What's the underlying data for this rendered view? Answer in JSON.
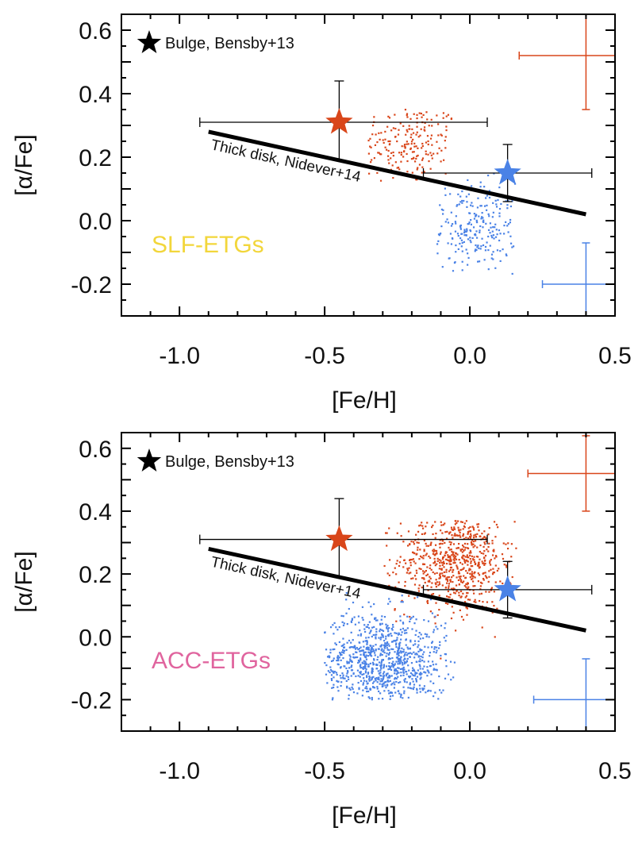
{
  "chart_data": [
    {
      "type": "scatter",
      "panel_label": "SLF-ETGs",
      "panel_label_color": "#f2d63b",
      "xlabel": "[Fe/H]",
      "ylabel": "[α/Fe]",
      "xlim": [
        -1.2,
        0.5
      ],
      "ylim": [
        -0.3,
        0.65
      ],
      "xticks": [
        -1.0,
        -0.5,
        0.0,
        0.5
      ],
      "xtick_labels": [
        "-1.0",
        "-0.5",
        "0.0",
        "0.5"
      ],
      "yticks": [
        -0.2,
        0.0,
        0.2,
        0.4,
        0.6
      ],
      "ytick_labels": [
        "-0.2",
        "0.0",
        "0.2",
        "0.4",
        "0.6"
      ],
      "legend": "Bulge, Bensby+13",
      "thick_disk": {
        "label": "Thick disk, Nidever+14",
        "x": [
          -0.9,
          0.4
        ],
        "y": [
          0.28,
          0.02
        ]
      },
      "series": [
        {
          "color": "#d9461a",
          "scatter": {
            "fe_center": -0.21,
            "fe_sd": 0.09,
            "a_center": 0.24,
            "a_sd": 0.065,
            "count": 200,
            "fe_range": [
              -0.35,
              -0.05
            ],
            "a_range": [
              0.05,
              0.38
            ]
          },
          "star": {
            "x": -0.45,
            "y": 0.31,
            "xerr": [
              0.48,
              0.51
            ],
            "yerr": [
              0.12,
              0.13
            ]
          }
        },
        {
          "color": "#4a82e6",
          "scatter": {
            "fe_center": 0.02,
            "fe_sd": 0.07,
            "a_center": -0.02,
            "a_sd": 0.07,
            "count": 240,
            "fe_range": [
              -0.12,
              0.16
            ],
            "a_range": [
              -0.18,
              0.15
            ]
          },
          "star": {
            "x": 0.13,
            "y": 0.15,
            "xerr": [
              0.29,
              0.29
            ],
            "yerr": [
              0.09,
              0.09
            ]
          }
        }
      ],
      "typical_errors": [
        {
          "color": "#d9461a",
          "x": 0.4,
          "y": 0.52,
          "xerr": 0.23,
          "yerr": 0.17
        },
        {
          "color": "#4a82e6",
          "x": 0.4,
          "y": -0.2,
          "xerr": 0.15,
          "yerr": 0.13
        }
      ]
    },
    {
      "type": "scatter",
      "panel_label": "ACC-ETGs",
      "panel_label_color": "#e0649e",
      "xlabel": "[Fe/H]",
      "ylabel": "[α/Fe]",
      "xlim": [
        -1.2,
        0.5
      ],
      "ylim": [
        -0.3,
        0.65
      ],
      "xticks": [
        -1.0,
        -0.5,
        0.0,
        0.5
      ],
      "xtick_labels": [
        "-1.0",
        "-0.5",
        "0.0",
        "0.5"
      ],
      "yticks": [
        -0.2,
        0.0,
        0.2,
        0.4,
        0.6
      ],
      "ytick_labels": [
        "-0.2",
        "0.0",
        "0.2",
        "0.4",
        "0.6"
      ],
      "legend": "Bulge, Bensby+13",
      "thick_disk": {
        "label": "Thick disk, Nidever+14",
        "x": [
          -0.9,
          0.4
        ],
        "y": [
          0.28,
          0.02
        ]
      },
      "series": [
        {
          "color": "#d9461a",
          "scatter": {
            "fe_center": -0.05,
            "fe_sd": 0.1,
            "a_center": 0.24,
            "a_sd": 0.08,
            "count": 700,
            "fe_range": [
              -0.3,
              0.16
            ],
            "a_range": [
              -0.12,
              0.37
            ]
          },
          "star": {
            "x": -0.45,
            "y": 0.31,
            "xerr": [
              0.48,
              0.51
            ],
            "yerr": [
              0.12,
              0.13
            ]
          }
        },
        {
          "color": "#4a82e6",
          "scatter": {
            "fe_center": -0.3,
            "fe_sd": 0.11,
            "a_center": -0.08,
            "a_sd": 0.08,
            "count": 900,
            "fe_range": [
              -0.5,
              -0.05
            ],
            "a_range": [
              -0.2,
              0.15
            ]
          },
          "star": {
            "x": 0.13,
            "y": 0.15,
            "xerr": [
              0.29,
              0.29
            ],
            "yerr": [
              0.09,
              0.09
            ]
          }
        }
      ],
      "typical_errors": [
        {
          "color": "#d9461a",
          "x": 0.4,
          "y": 0.52,
          "xerr": 0.2,
          "yerr": 0.12
        },
        {
          "color": "#4a82e6",
          "x": 0.4,
          "y": -0.2,
          "xerr": 0.18,
          "yerr": 0.13
        }
      ]
    }
  ]
}
